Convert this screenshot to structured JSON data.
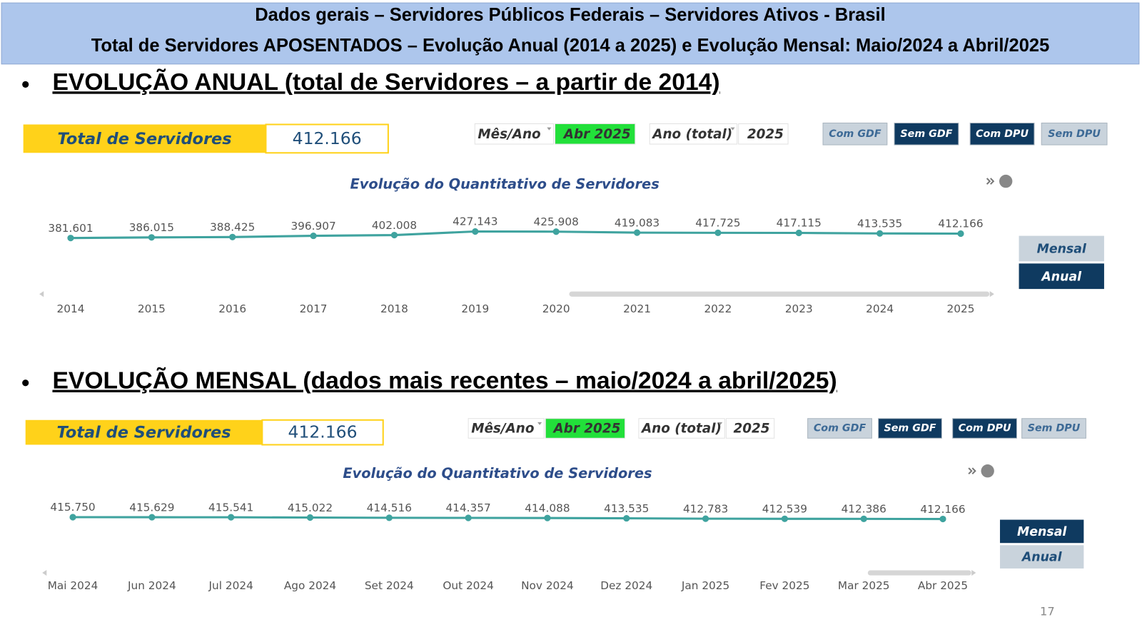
{
  "header": {
    "line1": "Dados gerais – Servidores Públicos Federais – Servidores Ativos - Brasil",
    "line2": "Total de Servidores APOSENTADOS – Evolução Anual (2014 a 2025) e Evolução Mensal: Maio/2024 a Abril/2025"
  },
  "sections": [
    {
      "heading": "EVOLUÇÃO ANUAL (total de Servidores – a partir de 2014)",
      "panel": {
        "total_label": "Total de Servidores",
        "total_value": "412.166",
        "filters": [
          "Mês/Ano",
          "Abr 2025",
          "Ano (total)",
          "2025"
        ],
        "buttons": [
          "Com GDF",
          "Sem GDF",
          "Com DPU",
          "Sem DPU"
        ],
        "view_buttons": [
          "Mensal",
          "Anual"
        ]
      }
    },
    {
      "heading": "EVOLUÇÃO MENSAL (dados mais recentes – maio/2024 a abril/2025)",
      "panel": {
        "total_label": "Total de Servidores",
        "total_value": "412.166",
        "filters": [
          "Mês/Ano",
          "Abr 2025",
          "Ano (total)",
          "2025"
        ],
        "buttons": [
          "Com GDF",
          "Sem GDF",
          "Com DPU",
          "Sem DPU"
        ],
        "view_buttons": [
          "Mensal",
          "Anual"
        ]
      }
    }
  ],
  "chart_data": [
    {
      "type": "line",
      "title": "Evolução do Quantitativo de Servidores",
      "categories": [
        "2014",
        "2015",
        "2016",
        "2017",
        "2018",
        "2019",
        "2020",
        "2021",
        "2022",
        "2023",
        "2024",
        "2025"
      ],
      "series": [
        {
          "color": "#3fa39f",
          "values": [
            381601,
            386015,
            388425,
            396907,
            402008,
            427143,
            425908,
            419083,
            417725,
            417115,
            413535,
            412166
          ],
          "value_labels": [
            "381.601",
            "386.015",
            "388.425",
            "396.907",
            "402.008",
            "427.143",
            "425.908",
            "419.083",
            "417.725",
            "417.115",
            "413.535",
            "412.166"
          ]
        }
      ]
    },
    {
      "type": "line",
      "title": "Evolução do Quantitativo de Servidores",
      "categories": [
        "Mai 2024",
        "Jun 2024",
        "Jul 2024",
        "Ago 2024",
        "Set 2024",
        "Out 2024",
        "Nov 2024",
        "Dez 2024",
        "Jan 2025",
        "Fev 2025",
        "Mar 2025",
        "Abr 2025"
      ],
      "series": [
        {
          "color": "#3fa39f",
          "values": [
            415750,
            415629,
            415541,
            415022,
            414516,
            414357,
            414088,
            413535,
            412783,
            412539,
            412386,
            412166
          ],
          "value_labels": [
            "415.750",
            "415.629",
            "415.541",
            "415.022",
            "414.516",
            "414.357",
            "414.088",
            "413.535",
            "412.783",
            "412.539",
            "412.386",
            "412.166"
          ]
        }
      ]
    }
  ],
  "page_number": "17"
}
